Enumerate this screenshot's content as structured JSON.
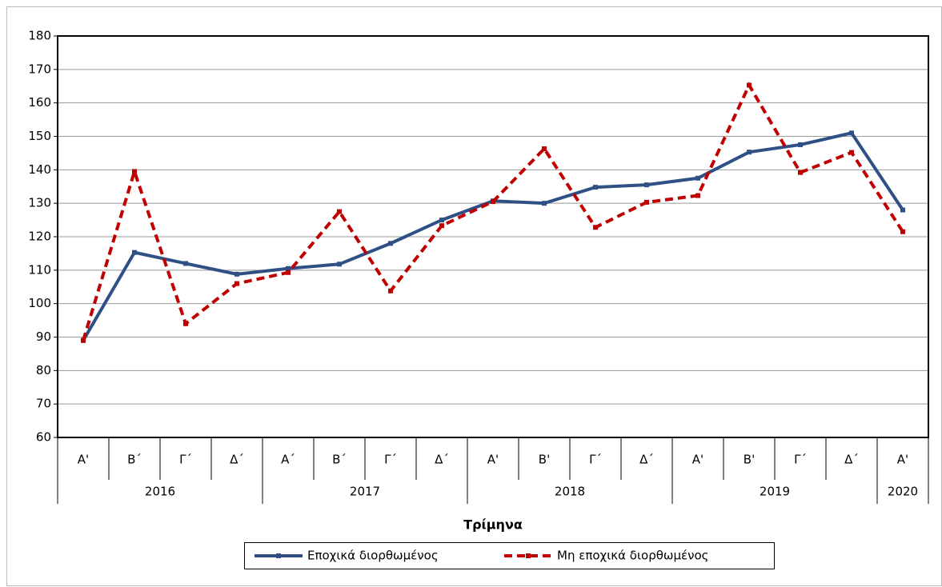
{
  "chart_data": {
    "type": "line",
    "categories": [
      "Α'",
      "Β΄",
      "Γ΄",
      "Δ΄",
      "Α΄",
      "Β΄",
      "Γ΄",
      "Δ΄",
      "Α'",
      "Β'",
      "Γ΄",
      "Δ΄",
      "Α'",
      "Β'",
      "Γ΄",
      "Δ΄",
      "Α'"
    ],
    "years": [
      "2016",
      null,
      null,
      null,
      "2017",
      null,
      null,
      null,
      "2018",
      null,
      null,
      null,
      "2019",
      null,
      null,
      null,
      "2020"
    ],
    "x_label": "Τρίμηνα",
    "series": [
      {
        "name": "Εποχικά διορθωμένος",
        "color": "#2E5085",
        "dashed": false,
        "values": [
          89,
          115.3,
          112,
          108.8,
          110.5,
          111.8,
          118,
          125,
          130.7,
          130,
          134.8,
          135.5,
          137.5,
          145.3,
          147.5,
          151,
          128
        ]
      },
      {
        "name": "Μη εποχικά διορθωμένος",
        "color": "#C00000",
        "dashed": true,
        "values": [
          89,
          139.5,
          94,
          106,
          109.3,
          127.5,
          103.8,
          123.3,
          130.5,
          146.3,
          122.8,
          130.3,
          132.3,
          165.3,
          139.2,
          145.2,
          121.5
        ]
      }
    ],
    "ylim": [
      60,
      180
    ],
    "yticks": [
      60,
      70,
      80,
      90,
      100,
      110,
      120,
      130,
      140,
      150,
      160,
      170,
      180
    ],
    "grid": true
  }
}
